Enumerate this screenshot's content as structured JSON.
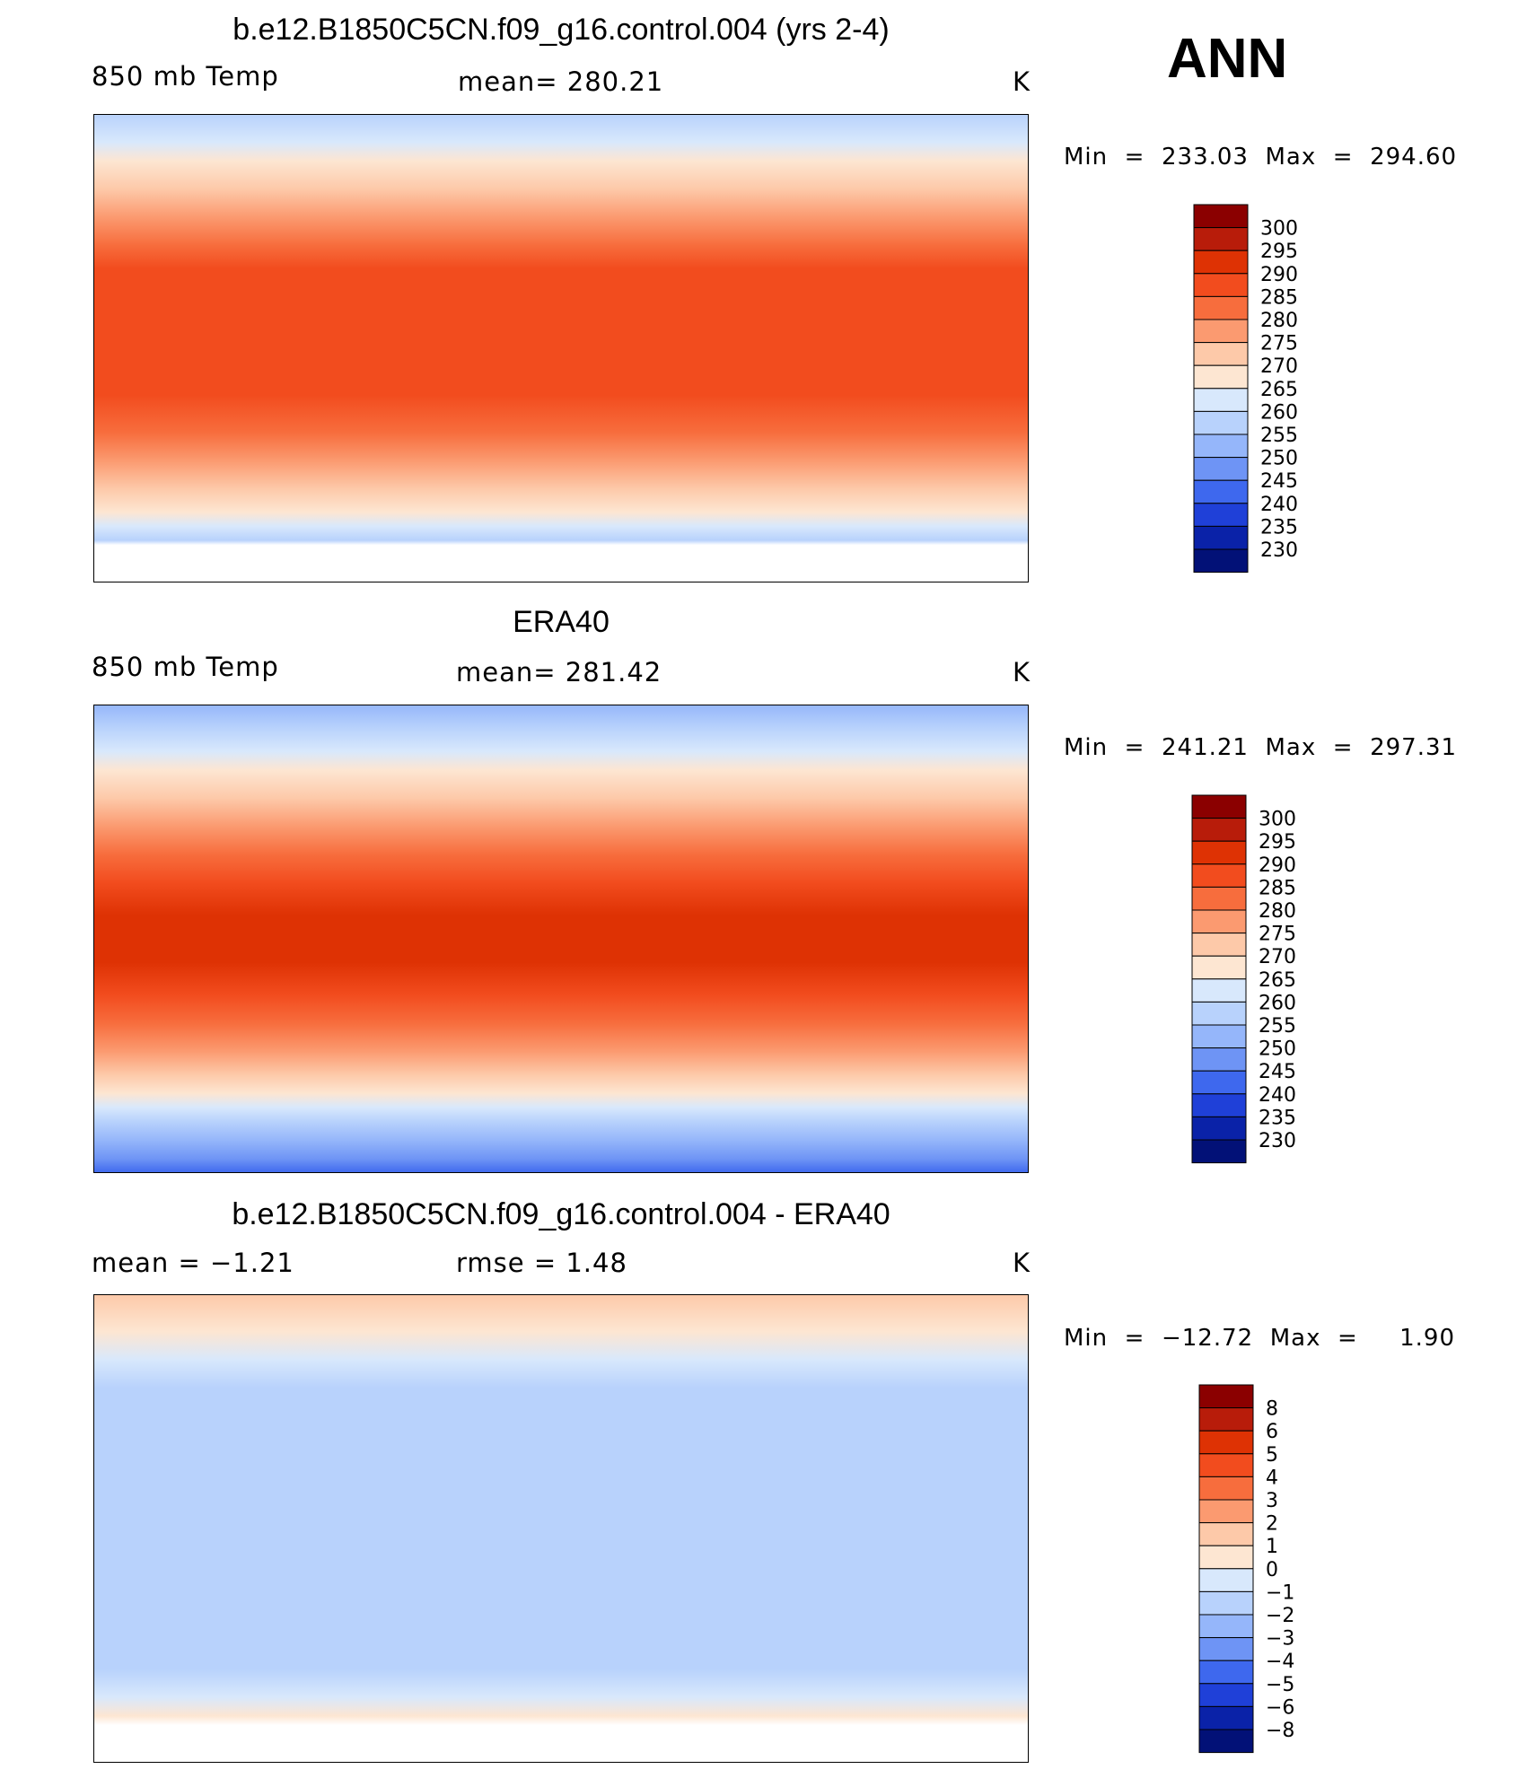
{
  "season": "ANN",
  "panels": [
    {
      "id": "model",
      "title": "b.e12.B1850C5CN.f09_g16.control.004 (yrs 2-4)",
      "left_label": "850 mb Temp",
      "center_label": "mean=  280.21",
      "units": "K",
      "minmax": "Min  =  233.03  Max  =  294.60",
      "colorbar_labels": [
        "300",
        "295",
        "290",
        "285",
        "280",
        "275",
        "270",
        "265",
        "260",
        "255",
        "250",
        "245",
        "240",
        "235",
        "230"
      ]
    },
    {
      "id": "obs",
      "title": "ERA40",
      "left_label": "850 mb Temp",
      "center_label": "mean=  281.42",
      "units": "K",
      "minmax": "Min  =  241.21  Max  =  297.31",
      "colorbar_labels": [
        "300",
        "295",
        "290",
        "285",
        "280",
        "275",
        "270",
        "265",
        "260",
        "255",
        "250",
        "245",
        "240",
        "235",
        "230"
      ]
    },
    {
      "id": "diff",
      "title": "b.e12.B1850C5CN.f09_g16.control.004 - ERA40",
      "left_label": "mean  =    −1.21",
      "center_label": "rmse  =     1.48",
      "units": "K",
      "minmax": "Min  =  −12.72  Max  =     1.90",
      "colorbar_labels": [
        "8",
        "6",
        "5",
        "4",
        "3",
        "2",
        "1",
        "0",
        "−1",
        "−2",
        "−3",
        "−4",
        "−5",
        "−6",
        "−8"
      ]
    }
  ],
  "palette": [
    "#8b0000",
    "#b81c0a",
    "#de3204",
    "#f24c1e",
    "#f76d3d",
    "#fb9a70",
    "#fdc9a9",
    "#fde6d2",
    "#d8e8fc",
    "#b8d2fc",
    "#95b6fa",
    "#6e94f5",
    "#3e68ee",
    "#1f40d8",
    "#0a22a8",
    "#021177"
  ],
  "land_outline_color": "#000000",
  "missing_color": "#ffffff"
}
